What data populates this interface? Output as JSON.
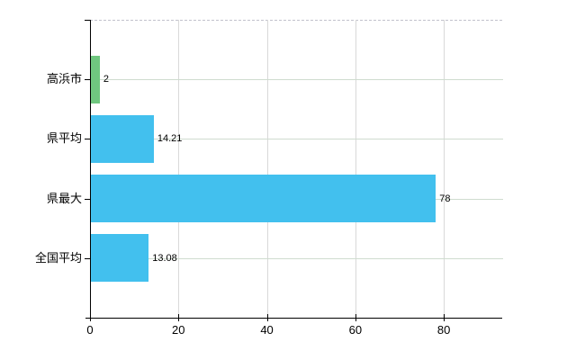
{
  "chart_data": {
    "type": "bar",
    "orientation": "horizontal",
    "title": "",
    "xlabel": "",
    "ylabel": "",
    "categories": [
      "高浜市",
      "県平均",
      "県最大",
      "全国平均"
    ],
    "values": [
      2,
      14.21,
      78,
      13.08
    ],
    "value_labels": [
      "2",
      "14.21",
      "78",
      "13.08"
    ],
    "bar_colors": [
      "#6fc77f",
      "#42c0ee",
      "#42c0ee",
      "#42c0ee"
    ],
    "xlim": [
      0,
      93.2
    ],
    "x_ticks": [
      0,
      20,
      40,
      60,
      80
    ],
    "x_tick_labels": [
      "0",
      "20",
      "40",
      "60",
      "80"
    ],
    "grid": "on",
    "legend": "none"
  },
  "colors": {
    "background": "#ffffff",
    "axis": "#000000",
    "grid_vertical": "#d9d9d9",
    "grid_horizontal": "#cfdccf",
    "plot_top_border": "#c2c2cc",
    "bar_blue": "#42c0ee",
    "bar_green": "#6fc77f",
    "text": "#000000"
  }
}
